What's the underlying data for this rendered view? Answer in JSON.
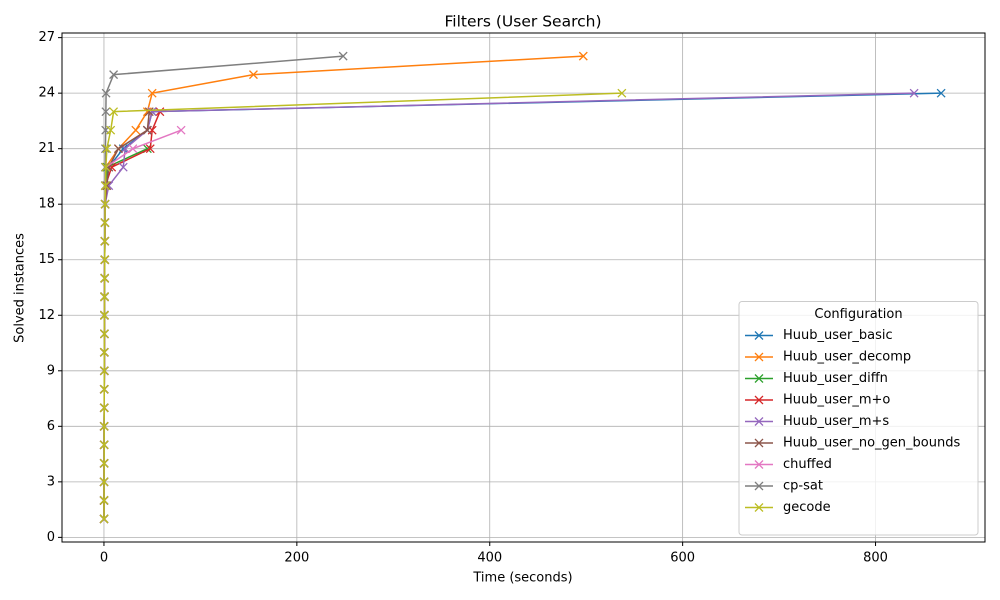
{
  "chart_data": {
    "type": "line",
    "title": "Filters (User Search)",
    "x_label": "Time (seconds)",
    "y_label": "Solved instances",
    "xlim": [
      -43.5,
      913.5
    ],
    "ylim": [
      -0.25,
      27.25
    ],
    "xticks": [
      0,
      200,
      400,
      600,
      800
    ],
    "yticks": [
      0,
      3,
      6,
      9,
      12,
      15,
      18,
      21,
      24,
      27
    ],
    "grid": true,
    "legend_title": "Configuration",
    "legend_loc": "lower right",
    "series": [
      {
        "name": "Huub_user_basic",
        "color": "#1f77b4",
        "x": [
          0.1,
          0.1,
          0.1,
          0.2,
          0.2,
          0.2,
          0.3,
          0.3,
          0.4,
          0.4,
          0.5,
          0.5,
          0.6,
          0.7,
          0.8,
          0.9,
          1,
          1.2,
          1.5,
          5,
          20,
          45,
          50,
          868
        ],
        "values": [
          1,
          2,
          3,
          4,
          5,
          6,
          7,
          8,
          9,
          10,
          11,
          12,
          13,
          14,
          15,
          16,
          17,
          18,
          19,
          20,
          21,
          22,
          23,
          24
        ]
      },
      {
        "name": "Huub_user_decomp",
        "color": "#ff7f0e",
        "x": [
          0.1,
          0.1,
          0.1,
          0.2,
          0.2,
          0.2,
          0.3,
          0.3,
          0.4,
          0.4,
          0.5,
          0.5,
          0.6,
          0.7,
          0.8,
          0.9,
          1,
          1.2,
          1.5,
          2,
          15,
          33,
          45,
          50,
          155,
          497
        ],
        "values": [
          1,
          2,
          3,
          4,
          5,
          6,
          7,
          8,
          9,
          10,
          11,
          12,
          13,
          14,
          15,
          16,
          17,
          18,
          19,
          20,
          21,
          22,
          23,
          24,
          25,
          26
        ]
      },
      {
        "name": "Huub_user_diffn",
        "color": "#2ca02c",
        "x": [
          0.1,
          0.1,
          0.1,
          0.2,
          0.2,
          0.2,
          0.3,
          0.3,
          0.4,
          0.4,
          0.5,
          0.5,
          0.6,
          0.7,
          0.8,
          0.9,
          1,
          1.2,
          2,
          3,
          45
        ],
        "values": [
          1,
          2,
          3,
          4,
          5,
          6,
          7,
          8,
          9,
          10,
          11,
          12,
          13,
          14,
          15,
          16,
          17,
          18,
          19,
          20,
          21
        ]
      },
      {
        "name": "Huub_user_m+o",
        "color": "#d62728",
        "x": [
          0.1,
          0.1,
          0.1,
          0.2,
          0.2,
          0.2,
          0.3,
          0.3,
          0.4,
          0.4,
          0.5,
          0.5,
          0.6,
          0.7,
          0.8,
          0.9,
          1,
          1.2,
          1.5,
          8,
          48,
          50,
          58
        ],
        "values": [
          1,
          2,
          3,
          4,
          5,
          6,
          7,
          8,
          9,
          10,
          11,
          12,
          13,
          14,
          15,
          16,
          17,
          18,
          19,
          20,
          21,
          22,
          23
        ]
      },
      {
        "name": "Huub_user_m+s",
        "color": "#9467bd",
        "x": [
          0.1,
          0.1,
          0.1,
          0.2,
          0.2,
          0.2,
          0.3,
          0.3,
          0.4,
          0.4,
          0.5,
          0.5,
          0.6,
          0.7,
          0.8,
          0.9,
          1,
          1.2,
          5,
          20,
          22,
          45,
          50,
          840
        ],
        "values": [
          1,
          2,
          3,
          4,
          5,
          6,
          7,
          8,
          9,
          10,
          11,
          12,
          13,
          14,
          15,
          16,
          17,
          18,
          19,
          20,
          21,
          22,
          23,
          24
        ]
      },
      {
        "name": "Huub_user_no_gen_bounds",
        "color": "#8c564b",
        "x": [
          0.1,
          0.1,
          0.1,
          0.2,
          0.2,
          0.2,
          0.3,
          0.3,
          0.4,
          0.4,
          0.5,
          0.5,
          0.6,
          0.7,
          0.8,
          0.9,
          1,
          1.2,
          3,
          5,
          15,
          45,
          47
        ],
        "values": [
          1,
          2,
          3,
          4,
          5,
          6,
          7,
          8,
          9,
          10,
          11,
          12,
          13,
          14,
          15,
          16,
          17,
          18,
          19,
          20,
          21,
          22,
          23
        ]
      },
      {
        "name": "chuffed",
        "color": "#e377c2",
        "x": [
          0.1,
          0.1,
          0.1,
          0.2,
          0.2,
          0.2,
          0.3,
          0.3,
          0.4,
          0.4,
          0.5,
          0.5,
          0.6,
          0.7,
          0.8,
          0.9,
          1,
          1.2,
          1.5,
          2,
          30,
          80
        ],
        "values": [
          1,
          2,
          3,
          4,
          5,
          6,
          7,
          8,
          9,
          10,
          11,
          12,
          13,
          14,
          15,
          16,
          17,
          18,
          19,
          20,
          21,
          22
        ]
      },
      {
        "name": "cp-sat",
        "color": "#7f7f7f",
        "x": [
          0.1,
          0.1,
          0.1,
          0.2,
          0.2,
          0.2,
          0.3,
          0.3,
          0.4,
          0.4,
          0.5,
          0.5,
          0.6,
          0.7,
          0.8,
          0.9,
          1,
          1.2,
          1.3,
          1.4,
          1.5,
          1.8,
          2,
          2.2,
          10,
          248
        ],
        "values": [
          1,
          2,
          3,
          4,
          5,
          6,
          7,
          8,
          9,
          10,
          11,
          12,
          13,
          14,
          15,
          16,
          17,
          18,
          19,
          20,
          21,
          22,
          23,
          24,
          25,
          26
        ]
      },
      {
        "name": "gecode",
        "color": "#bcbd22",
        "x": [
          0.1,
          0.1,
          0.1,
          0.2,
          0.2,
          0.2,
          0.3,
          0.3,
          0.4,
          0.4,
          0.5,
          0.5,
          0.6,
          0.7,
          0.8,
          0.9,
          1,
          1.2,
          1.5,
          2,
          3,
          7,
          10,
          537
        ],
        "values": [
          1,
          2,
          3,
          4,
          5,
          6,
          7,
          8,
          9,
          10,
          11,
          12,
          13,
          14,
          15,
          16,
          17,
          18,
          19,
          20,
          21,
          22,
          23,
          24
        ]
      }
    ]
  }
}
